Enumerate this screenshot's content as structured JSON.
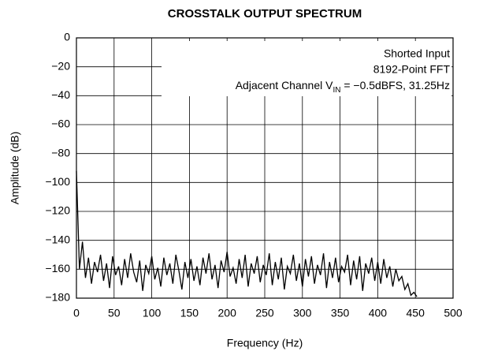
{
  "chart_data": {
    "type": "line",
    "title": "CROSSTALK OUTPUT SPECTRUM",
    "x_label": "Frequency (Hz)",
    "y_label": "Amplitude (dB)",
    "annotations": [
      "Shorted Input",
      "8192-Point FFT",
      {
        "text": "Adjacent Channel V",
        "sub": "IN",
        "rest": " = −0.5dBFS, 31.25Hz"
      }
    ],
    "xlim": [
      0,
      500
    ],
    "ylim": [
      -180,
      0
    ],
    "xticks": [
      0,
      50,
      100,
      150,
      200,
      250,
      300,
      350,
      400,
      450,
      500
    ],
    "yticks": [
      0,
      {
        "value": -20,
        "label": "−20"
      },
      {
        "value": -40,
        "label": "−40"
      },
      {
        "value": -60,
        "label": "−60"
      },
      {
        "value": -80,
        "label": "−80"
      },
      {
        "value": -100,
        "label": "−100"
      },
      {
        "value": -120,
        "label": "−120"
      },
      {
        "value": -140,
        "label": "−140"
      },
      {
        "value": -160,
        "label": "−160"
      },
      {
        "value": -180,
        "label": "−180"
      }
    ],
    "grid": true,
    "x": [
      0,
      4,
      8,
      12,
      16,
      20,
      24,
      28,
      32,
      36,
      40,
      44,
      48,
      52,
      56,
      60,
      64,
      68,
      72,
      76,
      80,
      84,
      88,
      92,
      96,
      100,
      104,
      108,
      112,
      116,
      120,
      124,
      128,
      132,
      136,
      140,
      144,
      148,
      152,
      156,
      160,
      164,
      168,
      172,
      176,
      180,
      184,
      188,
      192,
      196,
      200,
      204,
      208,
      212,
      216,
      220,
      224,
      228,
      232,
      236,
      240,
      244,
      248,
      252,
      256,
      260,
      264,
      268,
      272,
      276,
      280,
      284,
      288,
      292,
      296,
      300,
      304,
      308,
      312,
      316,
      320,
      324,
      328,
      332,
      336,
      340,
      344,
      348,
      352,
      356,
      360,
      364,
      368,
      372,
      376,
      380,
      384,
      388,
      392,
      396,
      400,
      404,
      408,
      412,
      416,
      420,
      424,
      428,
      432,
      436,
      440,
      444,
      448,
      452
    ],
    "series": [
      {
        "color": "#000000",
        "values": [
          -92,
          -160,
          -141,
          -166,
          -152,
          -170,
          -155,
          -162,
          -150,
          -168,
          -156,
          -173,
          -151,
          -164,
          -158,
          -171,
          -153,
          -166,
          -149,
          -162,
          -169,
          -154,
          -175,
          -157,
          -163,
          -151,
          -167,
          -159,
          -172,
          -152,
          -164,
          -156,
          -170,
          -150,
          -161,
          -174,
          -155,
          -166,
          -153,
          -168,
          -158,
          -171,
          -152,
          -163,
          -149,
          -167,
          -157,
          -173,
          -154,
          -162,
          -148,
          -165,
          -159,
          -170,
          -153,
          -166,
          -150,
          -172,
          -156,
          -163,
          -151,
          -169,
          -157,
          -164,
          -149,
          -171,
          -155,
          -167,
          -152,
          -174,
          -158,
          -163,
          -150,
          -168,
          -156,
          -172,
          -153,
          -165,
          -151,
          -170,
          -157,
          -164,
          -149,
          -173,
          -155,
          -166,
          -152,
          -169,
          -158,
          -162,
          -150,
          -171,
          -154,
          -167,
          -151,
          -175,
          -156,
          -163,
          -152,
          -168,
          -155,
          -170,
          -153,
          -166,
          -158,
          -172,
          -160,
          -168,
          -165,
          -174,
          -170,
          -178,
          -176,
          -179
        ]
      }
    ]
  }
}
